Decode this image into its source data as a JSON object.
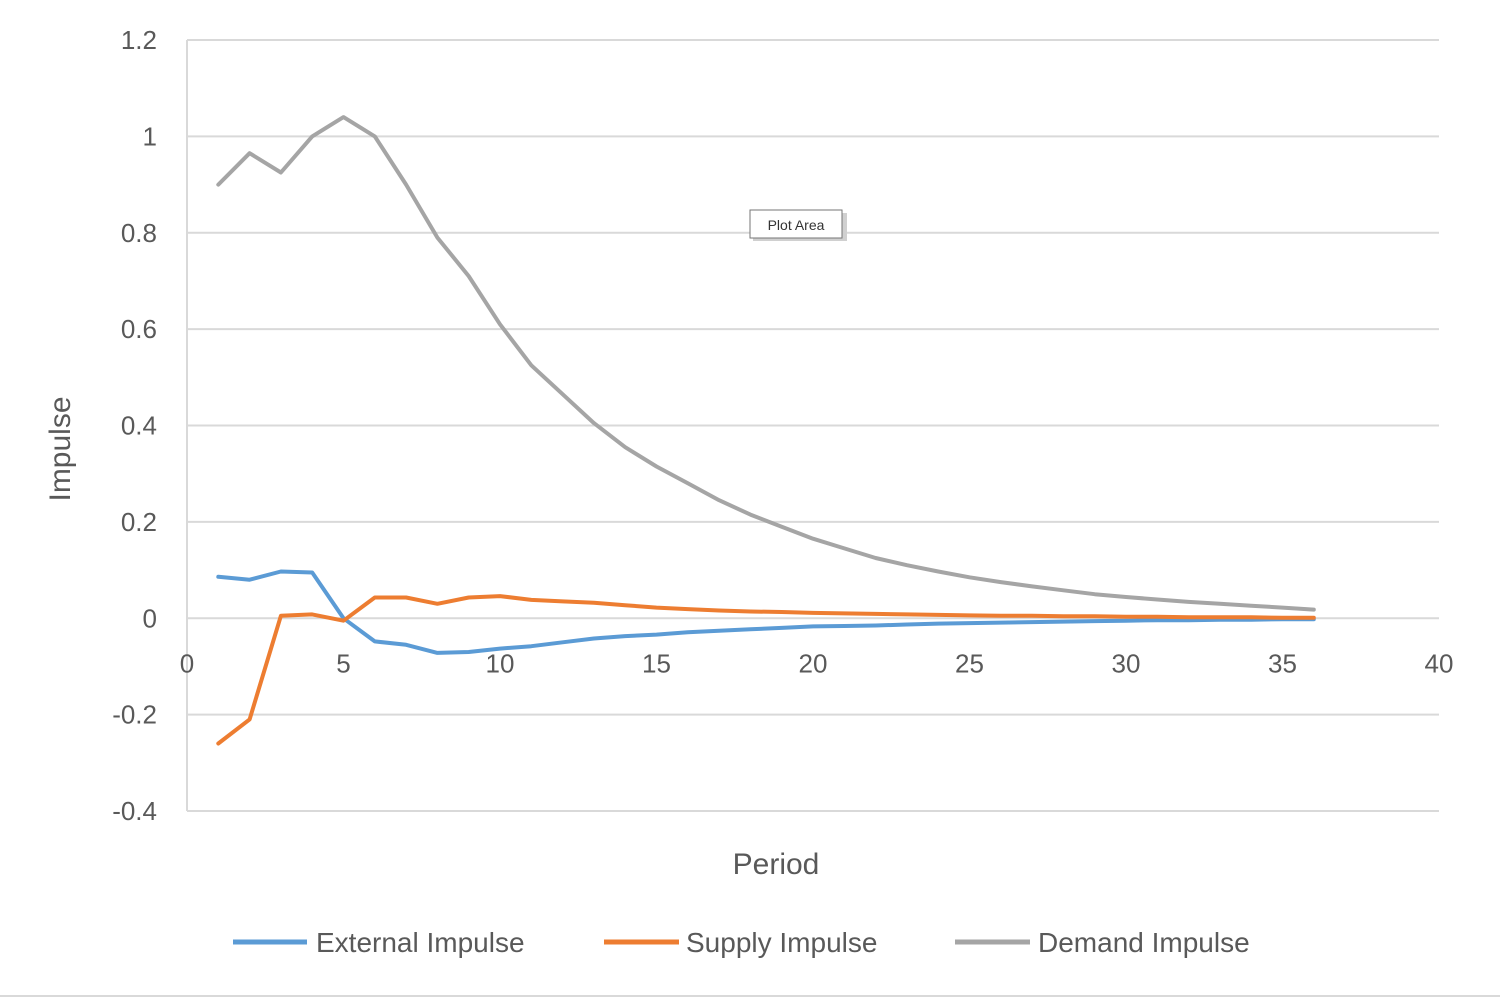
{
  "chart_data": {
    "type": "line",
    "title": "",
    "xlabel": "Period",
    "ylabel": "Impulse",
    "xlim": [
      0,
      40
    ],
    "ylim": [
      -0.4,
      1.2
    ],
    "x_ticks": [
      0,
      5,
      10,
      15,
      20,
      25,
      30,
      35,
      40
    ],
    "y_ticks": [
      -0.4,
      -0.2,
      0,
      0.2,
      0.4,
      0.6,
      0.8,
      1,
      1.2
    ],
    "grid": true,
    "legend_position": "bottom",
    "x": [
      1,
      2,
      3,
      4,
      5,
      6,
      7,
      8,
      9,
      10,
      11,
      12,
      13,
      14,
      15,
      16,
      17,
      18,
      19,
      20,
      21,
      22,
      23,
      24,
      25,
      26,
      27,
      28,
      29,
      30,
      31,
      32,
      33,
      34,
      35,
      36
    ],
    "series": [
      {
        "name": "External Impulse",
        "color": "#5b9bd5",
        "values": [
          0.086,
          0.08,
          0.097,
          0.095,
          0.0,
          -0.048,
          -0.055,
          -0.072,
          -0.07,
          -0.063,
          -0.058,
          -0.05,
          -0.042,
          -0.037,
          -0.034,
          -0.029,
          -0.026,
          -0.023,
          -0.02,
          -0.017,
          -0.016,
          -0.015,
          -0.013,
          -0.011,
          -0.01,
          -0.009,
          -0.008,
          -0.007,
          -0.006,
          -0.005,
          -0.004,
          -0.004,
          -0.003,
          -0.003,
          -0.002,
          -0.002
        ]
      },
      {
        "name": "Supply Impulse",
        "color": "#ed7d31",
        "values": [
          -0.26,
          -0.21,
          0.005,
          0.008,
          -0.005,
          0.043,
          0.043,
          0.03,
          0.043,
          0.046,
          0.038,
          0.035,
          0.032,
          0.027,
          0.022,
          0.019,
          0.016,
          0.014,
          0.013,
          0.011,
          0.01,
          0.009,
          0.008,
          0.007,
          0.006,
          0.005,
          0.005,
          0.004,
          0.004,
          0.003,
          0.003,
          0.002,
          0.002,
          0.002,
          0.001,
          0.001
        ]
      },
      {
        "name": "Demand Impulse",
        "color": "#a5a5a5",
        "values": [
          0.9,
          0.965,
          0.925,
          1.0,
          1.04,
          1.0,
          0.9,
          0.79,
          0.71,
          0.61,
          0.525,
          0.465,
          0.405,
          0.355,
          0.315,
          0.28,
          0.245,
          0.215,
          0.19,
          0.165,
          0.145,
          0.125,
          0.11,
          0.097,
          0.085,
          0.075,
          0.066,
          0.058,
          0.05,
          0.044,
          0.039,
          0.034,
          0.03,
          0.026,
          0.022,
          0.018
        ]
      }
    ]
  },
  "tooltip": {
    "label": "Plot Area"
  }
}
